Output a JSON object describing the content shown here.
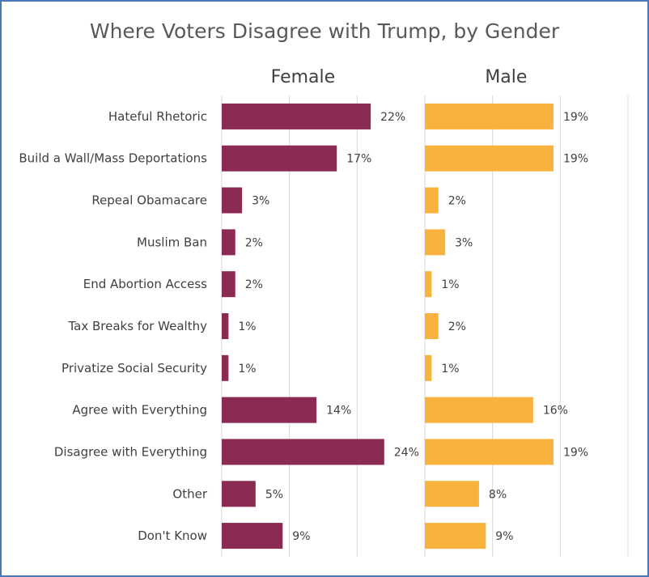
{
  "chart_data": {
    "type": "bar",
    "orientation": "horizontal",
    "title": "Where Voters Disagree with Trump, by Gender",
    "categories": [
      "Hateful Rhetoric",
      "Build a Wall/Mass Deportations",
      "Repeal Obamacare",
      "Muslim Ban",
      "End Abortion Access",
      "Tax Breaks for Wealthy",
      "Privatize Social Security",
      "Agree with Everything",
      "Disagree with Everything",
      "Other",
      "Don't Know"
    ],
    "series": [
      {
        "name": "Female",
        "color": "#8b2a52",
        "values": [
          22,
          17,
          3,
          2,
          2,
          1,
          1,
          14,
          24,
          5,
          9
        ],
        "labels": [
          "22%",
          "17%",
          "3%",
          "2%",
          "2%",
          "1%",
          "1%",
          "14%",
          "24%",
          "5%",
          "9%"
        ]
      },
      {
        "name": "Male",
        "color": "#f9b23e",
        "values": [
          19,
          19,
          2,
          3,
          1,
          2,
          1,
          16,
          19,
          8,
          9
        ],
        "labels": [
          "19%",
          "19%",
          "2%",
          "3%",
          "1%",
          "2%",
          "1%",
          "16%",
          "19%",
          "8%",
          "9%"
        ]
      }
    ],
    "xlim": [
      0,
      30
    ],
    "grid": true,
    "legend": "none"
  }
}
